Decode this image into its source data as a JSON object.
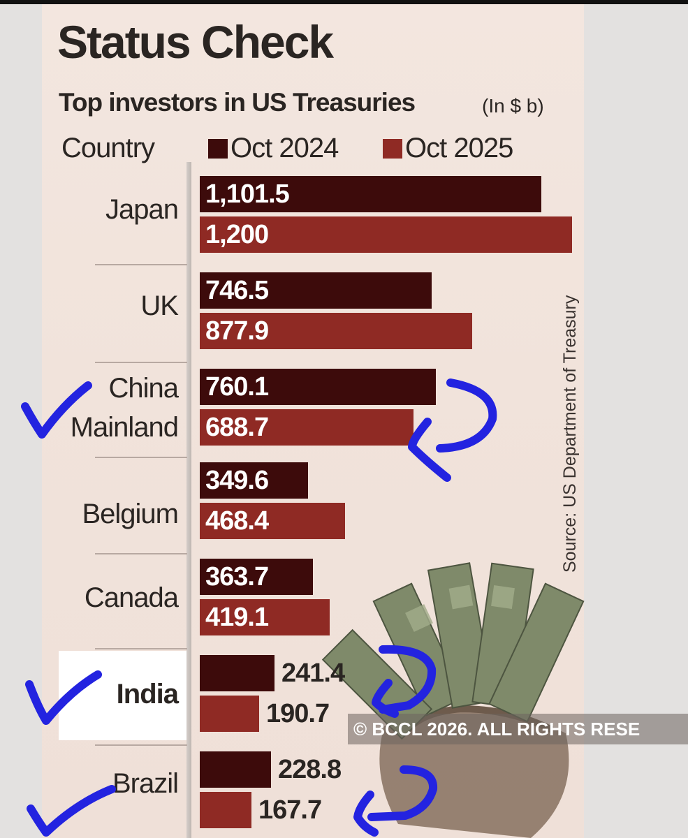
{
  "header": {
    "title": "Status Check",
    "subtitle": "Top investors in US Treasuries",
    "unit": "(In $ b)",
    "country_column": "Country"
  },
  "legend": [
    {
      "label": "Oct 2024",
      "color": "#3d0b0b"
    },
    {
      "label": "Oct 2025",
      "color": "#8f2a24"
    }
  ],
  "source": "Source: US Department of Treasury",
  "watermark": "© BCCL 2026. ALL RIGHTS RESE",
  "colors": {
    "oct_2024": "#3d0b0b",
    "oct_2025": "#8f2a24",
    "annotation": "#2323e0",
    "highlight": "#ffffff"
  },
  "chart_data": {
    "type": "bar",
    "orientation": "horizontal",
    "title": "Status Check",
    "subtitle": "Top investors in US Treasuries",
    "unit": "(In $ b)",
    "categories": [
      "Japan",
      "UK",
      "China Mainland",
      "Belgium",
      "Canada",
      "India",
      "Brazil"
    ],
    "category_labels": [
      [
        "Japan"
      ],
      [
        "UK"
      ],
      [
        "China",
        "Mainland"
      ],
      [
        "Belgium"
      ],
      [
        "Canada"
      ],
      [
        "India"
      ],
      [
        "Brazil"
      ]
    ],
    "series": [
      {
        "name": "Oct 2024",
        "values": [
          1101.5,
          746.5,
          760.1,
          349.6,
          363.7,
          241.4,
          228.8
        ],
        "labels": [
          "1,101.5",
          "746.5",
          "760.1",
          "349.6",
          "363.7",
          "241.4",
          "228.8"
        ]
      },
      {
        "name": "Oct 2025",
        "values": [
          1200,
          877.9,
          688.7,
          468.4,
          419.1,
          190.7,
          167.7
        ],
        "labels": [
          "1,200",
          "877.9",
          "688.7",
          "468.4",
          "419.1",
          "190.7",
          "167.7"
        ]
      }
    ],
    "xlim": [
      0,
      1200
    ],
    "grid": false,
    "legend_position": "top",
    "highlighted_category": "India",
    "checkmarked_categories": [
      "China Mainland",
      "India",
      "Brazil"
    ]
  }
}
